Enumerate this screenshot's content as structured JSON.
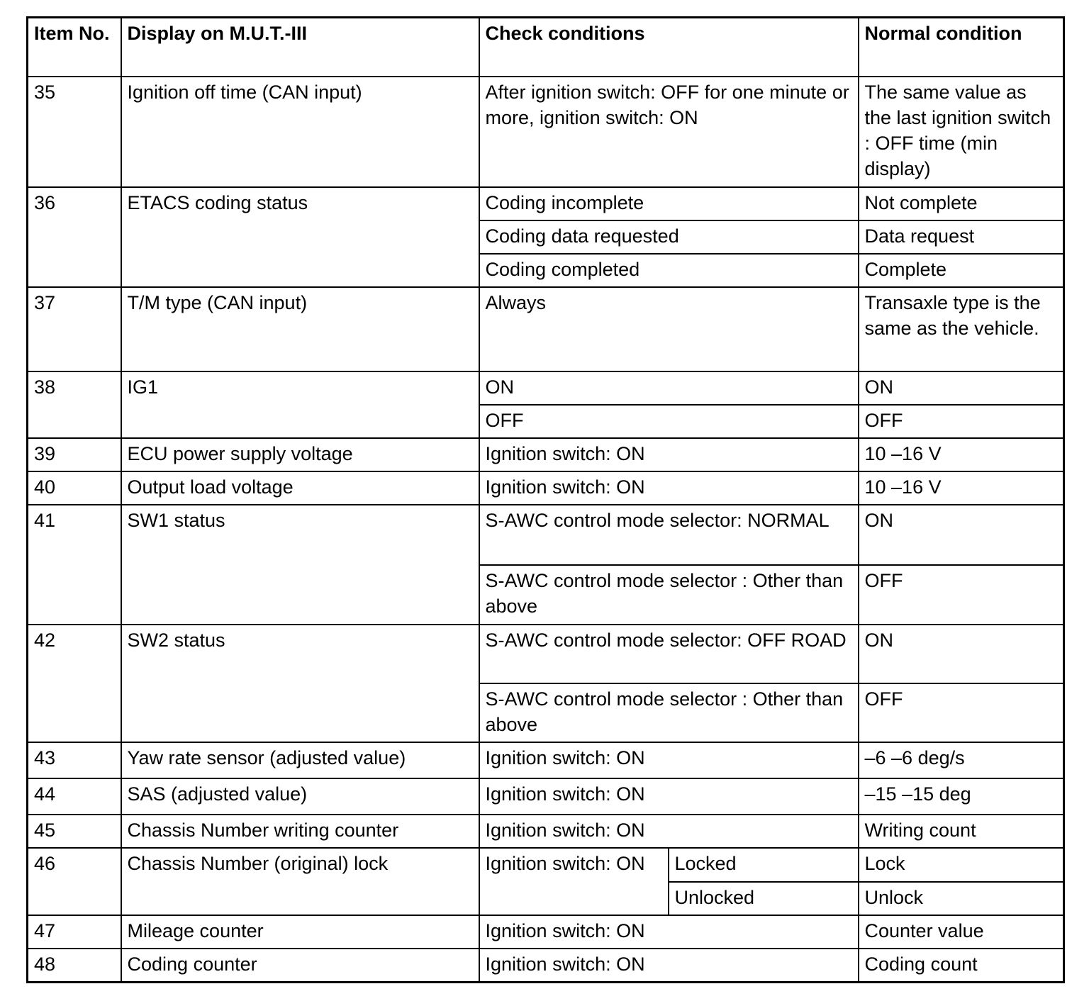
{
  "headers": {
    "item_no": "Item No.",
    "display": "Display on M.U.T.-III",
    "check": "Check conditions",
    "normal": "Normal condition"
  },
  "items": [
    {
      "no": "35",
      "display": "Ignition off time (CAN input)",
      "checks": [
        {
          "condition": "After ignition switch: OFF for one minute or more, ignition switch: ON",
          "normal": "The same value as the last ignition switch : OFF time (min display)"
        }
      ]
    },
    {
      "no": "36",
      "display": "ETACS coding status",
      "checks": [
        {
          "condition": "Coding incomplete",
          "normal": "Not complete"
        },
        {
          "condition": "Coding data requested",
          "normal": "Data request"
        },
        {
          "condition": "Coding completed",
          "normal": "Complete"
        }
      ]
    },
    {
      "no": "37",
      "display": "T/M type (CAN input)",
      "checks": [
        {
          "condition": "Always",
          "normal": "Transaxle type is the same as the vehicle."
        }
      ]
    },
    {
      "no": "38",
      "display": "IG1",
      "checks": [
        {
          "condition": "ON",
          "normal": "ON"
        },
        {
          "condition": "OFF",
          "normal": "OFF"
        }
      ]
    },
    {
      "no": "39",
      "display": "ECU power supply voltage",
      "checks": [
        {
          "condition": "Ignition switch: ON",
          "normal": "10 –16 V"
        }
      ]
    },
    {
      "no": "40",
      "display": "Output load voltage",
      "checks": [
        {
          "condition": "Ignition switch: ON",
          "normal": "10 –16 V"
        }
      ]
    },
    {
      "no": "41",
      "display": "SW1 status",
      "checks": [
        {
          "condition": "S-AWC control mode selector: NORMAL",
          "normal": "ON"
        },
        {
          "condition": "S-AWC control mode selector : Other than above",
          "normal": "OFF"
        }
      ]
    },
    {
      "no": "42",
      "display": "SW2 status",
      "checks": [
        {
          "condition": "S-AWC control mode selector: OFF ROAD",
          "normal": "ON"
        },
        {
          "condition": "S-AWC control mode selector : Other than above",
          "normal": "OFF"
        }
      ]
    },
    {
      "no": "43",
      "display": "Yaw rate sensor (adjusted value)",
      "checks": [
        {
          "condition": "Ignition switch: ON",
          "normal": "–6 –6 deg/s"
        }
      ]
    },
    {
      "no": "44",
      "display": "SAS (adjusted value)",
      "checks": [
        {
          "condition": "Ignition switch: ON",
          "normal": "–15 –15 deg"
        }
      ]
    },
    {
      "no": "45",
      "display": "Chassis Number writing counter",
      "checks": [
        {
          "condition": "Ignition switch: ON",
          "normal": "Writing count"
        }
      ]
    },
    {
      "no": "46",
      "display": "Chassis Number (original) lock",
      "group_condition": "Ignition switch: ON",
      "checks": [
        {
          "condition": "Locked",
          "normal": "Lock"
        },
        {
          "condition": "Unlocked",
          "normal": "Unlock"
        }
      ]
    },
    {
      "no": "47",
      "display": "Mileage counter",
      "checks": [
        {
          "condition": "Ignition switch: ON",
          "normal": "Counter value"
        }
      ]
    },
    {
      "no": "48",
      "display": "Coding counter",
      "checks": [
        {
          "condition": "Ignition switch: ON",
          "normal": "Coding count"
        }
      ]
    }
  ]
}
